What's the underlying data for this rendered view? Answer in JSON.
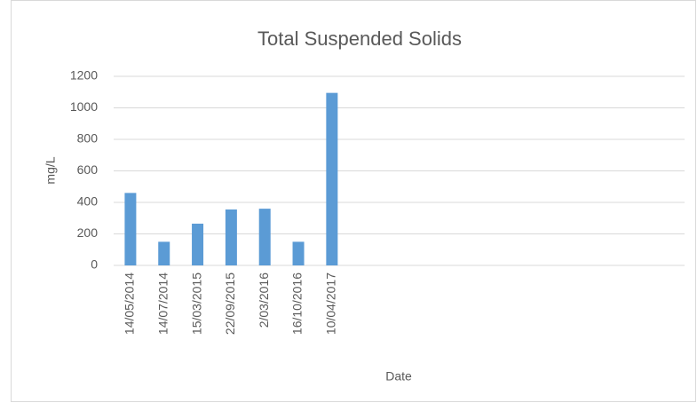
{
  "chart_data": {
    "type": "bar",
    "title": "Total Suspended Solids",
    "x_label": "Date",
    "y_label": "mg/L",
    "categories": [
      "14/05/2014",
      "14/07/2014",
      "15/03/2015",
      "22/09/2015",
      "2/03/2016",
      "16/10/2016",
      "10/04/2017",
      null,
      null,
      null,
      null,
      null,
      null,
      null,
      null,
      null,
      null
    ],
    "values": [
      460,
      150,
      265,
      355,
      360,
      150,
      1095,
      null,
      null,
      null,
      null,
      null,
      null,
      null,
      null,
      null,
      null
    ],
    "color": "#5b9bd5",
    "ylim": [
      0,
      1200
    ],
    "yticks": [
      0,
      200,
      400,
      600,
      800,
      1000,
      1200
    ],
    "grid": true
  }
}
